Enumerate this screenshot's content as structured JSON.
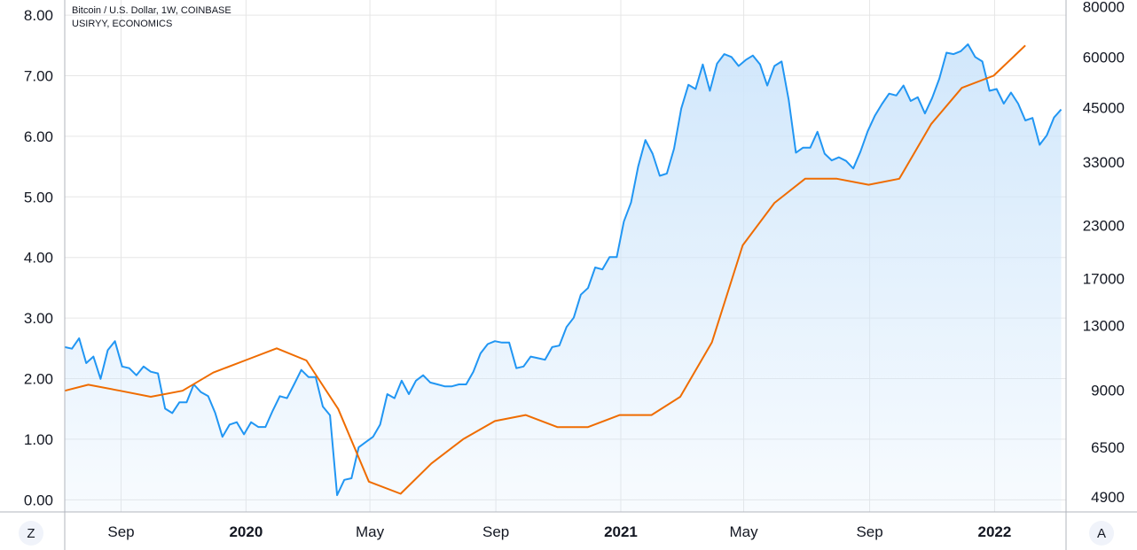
{
  "legend": {
    "line1": "Bitcoin / U.S. Dollar, 1W, COINBASE",
    "line2": "USIRYY, ECONOMICS"
  },
  "buttons": {
    "left": "Z",
    "right": "A"
  },
  "chart_data": {
    "type": "area",
    "colors": {
      "btc": "#2196f3",
      "infl": "#ef6c00",
      "fill": "#cfe6fb",
      "grid": "#e6e6e6"
    },
    "x_axis": {
      "range": [
        "2019-07-08",
        "2022-02-06"
      ],
      "ticks": [
        {
          "date": "2019-09-01",
          "label": "Sep",
          "bold": false
        },
        {
          "date": "2020-01-01",
          "label": "2020",
          "bold": true
        },
        {
          "date": "2020-05-01",
          "label": "May",
          "bold": false
        },
        {
          "date": "2020-09-01",
          "label": "Sep",
          "bold": false
        },
        {
          "date": "2021-01-01",
          "label": "2021",
          "bold": true
        },
        {
          "date": "2021-05-01",
          "label": "May",
          "bold": false
        },
        {
          "date": "2021-09-01",
          "label": "Sep",
          "bold": false
        },
        {
          "date": "2022-01-01",
          "label": "2022",
          "bold": true
        }
      ]
    },
    "left_axis": {
      "scale": "linear",
      "range": [
        -0.2,
        8.25
      ],
      "ticks": [
        "0.00",
        "1.00",
        "2.00",
        "3.00",
        "4.00",
        "5.00",
        "6.00",
        "7.00",
        "8.00"
      ]
    },
    "right_axis": {
      "scale": "log",
      "range": [
        4500,
        83000
      ],
      "ticks": [
        4900,
        6500,
        9000,
        13000,
        17000,
        23000,
        33000,
        45000,
        60000,
        80000
      ]
    },
    "series": [
      {
        "name": "Bitcoin / U.S. Dollar",
        "axis": "right",
        "x_start": "2019-07-08",
        "step_days": 7,
        "values": [
          11500,
          11400,
          12100,
          10500,
          10900,
          9600,
          11300,
          11900,
          10300,
          10200,
          9800,
          10300,
          10000,
          9900,
          8100,
          7900,
          8400,
          8400,
          9300,
          8900,
          8700,
          7900,
          6900,
          7400,
          7500,
          7000,
          7500,
          7300,
          7300,
          8000,
          8700,
          8600,
          9300,
          10100,
          9700,
          9700,
          8200,
          7800,
          4950,
          5400,
          5450,
          6500,
          6700,
          6900,
          7400,
          8800,
          8600,
          9500,
          8800,
          9500,
          9800,
          9400,
          9300,
          9200,
          9200,
          9300,
          9300,
          10000,
          11100,
          11700,
          11900,
          11800,
          11800,
          10200,
          10300,
          10900,
          10800,
          10700,
          11500,
          11600,
          12900,
          13600,
          15500,
          16100,
          18100,
          17900,
          19200,
          19200,
          23500,
          26200,
          32200,
          37400,
          34600,
          30500,
          30900,
          35600,
          44700,
          51200,
          50000,
          57500,
          49500,
          57800,
          61000,
          60000,
          57000,
          59000,
          60500,
          57500,
          51000,
          57000,
          58500,
          47000,
          34800,
          35800,
          35800,
          39200,
          34600,
          33300,
          33900,
          33200,
          31800,
          35000,
          39300,
          42900,
          45900,
          48700,
          48200,
          51000,
          46700,
          47700,
          43500,
          47500,
          53000,
          61500,
          61000,
          62000,
          64500,
          60000,
          58500,
          49500,
          50000,
          46000,
          49000,
          46000,
          41800,
          42400,
          36400,
          38400,
          42500,
          44500
        ]
      },
      {
        "name": "USIRYY",
        "axis": "left",
        "points": [
          [
            "2019-07-08",
            1.8
          ],
          [
            "2019-07-31",
            1.9
          ],
          [
            "2019-08-31",
            1.8
          ],
          [
            "2019-09-30",
            1.7
          ],
          [
            "2019-10-31",
            1.8
          ],
          [
            "2019-11-30",
            2.1
          ],
          [
            "2019-12-31",
            2.3
          ],
          [
            "2020-01-31",
            2.5
          ],
          [
            "2020-02-29",
            2.3
          ],
          [
            "2020-03-31",
            1.5
          ],
          [
            "2020-04-30",
            0.3
          ],
          [
            "2020-05-31",
            0.1
          ],
          [
            "2020-06-30",
            0.6
          ],
          [
            "2020-07-31",
            1.0
          ],
          [
            "2020-08-31",
            1.3
          ],
          [
            "2020-09-30",
            1.4
          ],
          [
            "2020-10-31",
            1.2
          ],
          [
            "2020-11-30",
            1.2
          ],
          [
            "2020-12-31",
            1.4
          ],
          [
            "2021-01-31",
            1.4
          ],
          [
            "2021-02-28",
            1.7
          ],
          [
            "2021-03-31",
            2.6
          ],
          [
            "2021-04-30",
            4.2
          ],
          [
            "2021-05-31",
            4.9
          ],
          [
            "2021-06-30",
            5.3
          ],
          [
            "2021-07-31",
            5.3
          ],
          [
            "2021-08-31",
            5.2
          ],
          [
            "2021-09-30",
            5.3
          ],
          [
            "2021-10-31",
            6.2
          ],
          [
            "2021-11-30",
            6.8
          ],
          [
            "2021-12-31",
            7.0
          ],
          [
            "2022-01-31",
            7.5
          ]
        ]
      }
    ]
  }
}
